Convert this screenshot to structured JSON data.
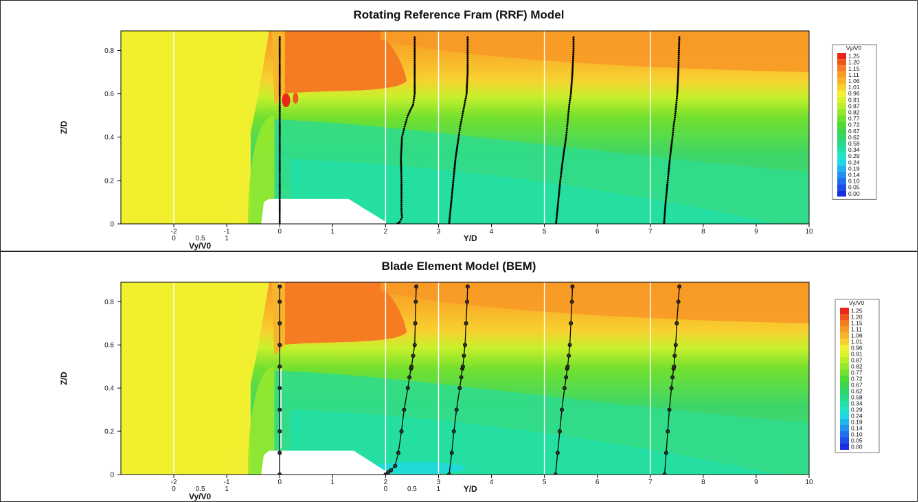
{
  "legend": {
    "title": "Vy/V0",
    "levels": [
      "1.25",
      "1.20",
      "1.15",
      "1.11",
      "1.06",
      "1.01",
      "0.96",
      "0.91",
      "0.87",
      "0.82",
      "0.77",
      "0.72",
      "0.67",
      "0.62",
      "0.58",
      "0.34",
      "0.29",
      "0.24",
      "0.19",
      "0.14",
      "0.10",
      "0.05",
      "0.00"
    ],
    "colors": [
      "#e8261a",
      "#f2551c",
      "#f57c22",
      "#f79a26",
      "#f8b42a",
      "#f8d030",
      "#f2ef32",
      "#dcf22e",
      "#b8ee2c",
      "#96e82c",
      "#72e02e",
      "#4fd934",
      "#3cd549",
      "#2ed766",
      "#26da86",
      "#22e0a8",
      "#22e3c8",
      "#1fd8e6",
      "#21b4ee",
      "#2192ee",
      "#2070ee",
      "#1d4ee8",
      "#1a2ee0"
    ]
  },
  "chart_data": [
    {
      "type": "line",
      "title": "Rotating Reference Fram (RRF) Model",
      "xlabel": "Y/D",
      "ylabel": "Z/D",
      "profile_axis_label": "Vy/V0",
      "xlim": [
        -3.0,
        10.0
      ],
      "ylim": [
        0.0,
        0.89
      ],
      "x_ticks": [
        "-2",
        "-1",
        "0",
        "1",
        "2",
        "3",
        "4",
        "5",
        "6",
        "7",
        "8",
        "9",
        "10"
      ],
      "y_ticks": [
        "0",
        "0.2",
        "0.4",
        "0.6",
        "0.8"
      ],
      "profile_ticks": [
        "0",
        "0.5",
        "1"
      ],
      "profile_scale": 2.0,
      "marker_style": "dots",
      "series": [
        {
          "station": -1,
          "z": [
            0,
            0.1,
            0.2,
            0.3,
            0.4,
            0.5,
            0.6,
            0.7,
            0.8,
            0.87
          ],
          "v": [
            1.0,
            1.0,
            1.0,
            1.0,
            1.0,
            1.0,
            1.0,
            1.0,
            1.0,
            1.0
          ]
        },
        {
          "station": 2,
          "z": [
            0,
            0.01,
            0.03,
            0.06,
            0.1,
            0.2,
            0.3,
            0.4,
            0.45,
            0.5,
            0.55,
            0.6,
            0.7,
            0.8,
            0.87
          ],
          "v": [
            0.22,
            0.27,
            0.31,
            0.3,
            0.3,
            0.3,
            0.29,
            0.31,
            0.36,
            0.42,
            0.52,
            0.55,
            0.55,
            0.55,
            0.55
          ]
        },
        {
          "station": 3,
          "z": [
            0,
            0.1,
            0.2,
            0.3,
            0.4,
            0.45,
            0.5,
            0.55,
            0.6,
            0.7,
            0.8,
            0.87
          ],
          "v": [
            0.2,
            0.24,
            0.28,
            0.32,
            0.38,
            0.41,
            0.45,
            0.49,
            0.53,
            0.55,
            0.55,
            0.55
          ]
        },
        {
          "station": 5,
          "z": [
            0,
            0.1,
            0.2,
            0.3,
            0.4,
            0.45,
            0.5,
            0.55,
            0.6,
            0.7,
            0.8,
            0.87
          ],
          "v": [
            0.22,
            0.26,
            0.3,
            0.35,
            0.41,
            0.43,
            0.45,
            0.47,
            0.5,
            0.53,
            0.55,
            0.55
          ]
        },
        {
          "station": 7,
          "z": [
            0,
            0.1,
            0.2,
            0.3,
            0.4,
            0.45,
            0.5,
            0.55,
            0.6,
            0.7,
            0.8,
            0.87
          ],
          "v": [
            0.26,
            0.29,
            0.33,
            0.37,
            0.42,
            0.44,
            0.47,
            0.49,
            0.51,
            0.53,
            0.54,
            0.55
          ]
        }
      ]
    },
    {
      "type": "line",
      "title": "Blade Element Model (BEM)",
      "xlabel": "Y/D",
      "ylabel": "Z/D",
      "profile_axis_label": "Vy/V0",
      "xlim": [
        -3.0,
        10.0
      ],
      "ylim": [
        0.0,
        0.89
      ],
      "x_ticks": [
        "-2",
        "-1",
        "0",
        "1",
        "2",
        "3",
        "4",
        "5",
        "6",
        "7",
        "8",
        "9",
        "10"
      ],
      "y_ticks": [
        "0",
        "0.2",
        "0.4",
        "0.6",
        "0.8"
      ],
      "profile_ticks": [
        "0",
        "0.5",
        "1"
      ],
      "profile_ticks_2": [
        "0",
        "0.5",
        "1"
      ],
      "profile_scale": 2.0,
      "marker_style": "line-markers",
      "series": [
        {
          "station": -1,
          "z": [
            0,
            0.1,
            0.2,
            0.3,
            0.4,
            0.5,
            0.6,
            0.7,
            0.8,
            0.87
          ],
          "v": [
            1.0,
            1.0,
            1.0,
            1.0,
            1.0,
            1.0,
            1.0,
            1.0,
            1.0,
            1.0
          ]
        },
        {
          "station": 2,
          "z": [
            0,
            0.01,
            0.02,
            0.04,
            0.1,
            0.2,
            0.3,
            0.4,
            0.45,
            0.49,
            0.5,
            0.55,
            0.6,
            0.7,
            0.8,
            0.87
          ],
          "v": [
            0.0,
            0.05,
            0.1,
            0.18,
            0.24,
            0.3,
            0.35,
            0.42,
            0.45,
            0.48,
            0.49,
            0.52,
            0.55,
            0.56,
            0.57,
            0.58
          ]
        },
        {
          "station": 3,
          "z": [
            0,
            0.1,
            0.2,
            0.3,
            0.4,
            0.45,
            0.49,
            0.5,
            0.55,
            0.6,
            0.7,
            0.8,
            0.87
          ],
          "v": [
            0.2,
            0.25,
            0.29,
            0.34,
            0.4,
            0.43,
            0.45,
            0.46,
            0.48,
            0.5,
            0.52,
            0.54,
            0.55
          ]
        },
        {
          "station": 5,
          "z": [
            0,
            0.1,
            0.2,
            0.3,
            0.4,
            0.45,
            0.49,
            0.5,
            0.55,
            0.6,
            0.7,
            0.8,
            0.87
          ],
          "v": [
            0.21,
            0.25,
            0.29,
            0.33,
            0.38,
            0.41,
            0.43,
            0.44,
            0.46,
            0.48,
            0.5,
            0.52,
            0.53
          ]
        },
        {
          "station": 7,
          "z": [
            0,
            0.1,
            0.2,
            0.3,
            0.4,
            0.45,
            0.49,
            0.5,
            0.55,
            0.6,
            0.7,
            0.8,
            0.87
          ],
          "v": [
            0.27,
            0.3,
            0.33,
            0.36,
            0.4,
            0.42,
            0.44,
            0.45,
            0.46,
            0.48,
            0.5,
            0.53,
            0.55
          ]
        }
      ]
    }
  ]
}
